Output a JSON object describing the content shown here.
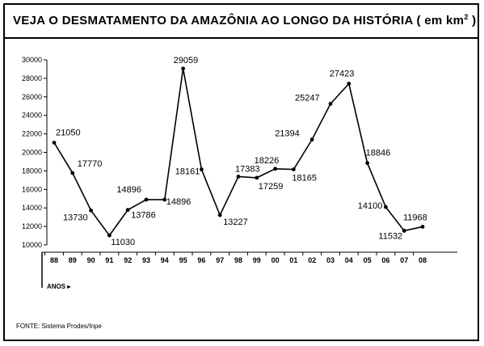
{
  "chart_data": {
    "type": "line",
    "title_main": "VEJA O DESMATAMENTO DA AMAZÔNIA AO LONGO DA HISTÓRIA",
    "title_unit_open": "( em km",
    "title_unit_sup": "2",
    "title_unit_close": " )",
    "xlabel": "ANOS ▸",
    "source": "FONTE: Sistema Prodes/Inpe",
    "ylim": [
      10000,
      30000
    ],
    "yticks": [
      "10000",
      "12000",
      "14000",
      "16000",
      "18000",
      "20000",
      "22000",
      "24000",
      "26000",
      "28000",
      "30000"
    ],
    "categories": [
      "88",
      "89",
      "90",
      "91",
      "92",
      "93",
      "94",
      "95",
      "96",
      "97",
      "98",
      "99",
      "00",
      "01",
      "02",
      "03",
      "04",
      "05",
      "06",
      "07",
      "08"
    ],
    "values": [
      21050,
      17770,
      13730,
      11030,
      13786,
      14896,
      14896,
      29059,
      18161,
      13227,
      17383,
      17259,
      18226,
      18165,
      21394,
      25247,
      27423,
      18846,
      14100,
      11532,
      11968
    ],
    "data_labels": [
      "21050",
      "17770",
      "13730",
      "11030",
      "13786",
      "14896",
      "14896",
      "29059",
      "18161",
      "13227",
      "17383",
      "17259",
      "18226",
      "18165",
      "21394",
      "25247",
      "27423",
      "18846",
      "14100",
      "11532",
      "11968"
    ],
    "grid": false,
    "line_color": "#000000"
  }
}
